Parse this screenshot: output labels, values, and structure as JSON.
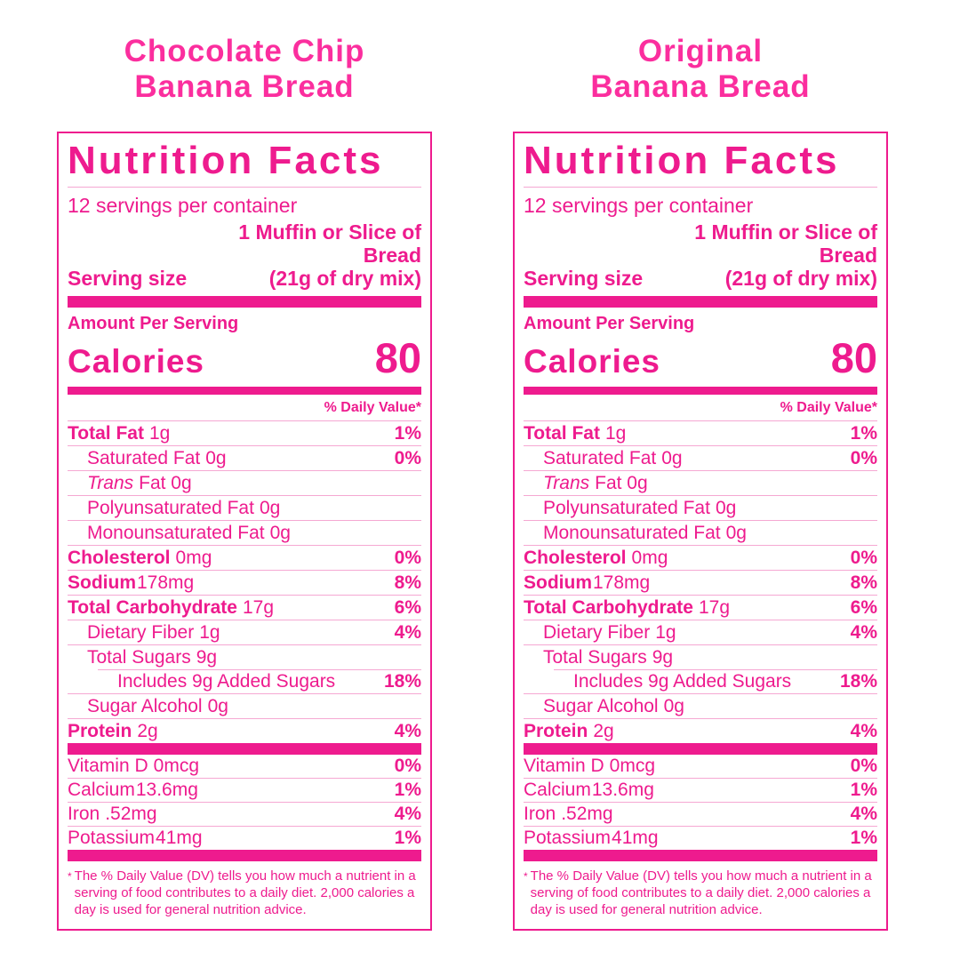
{
  "colors": {
    "title_pink": "#fb2e9e",
    "label_pink": "#ee1b8e",
    "hairline_pink": "#f5a8d2",
    "background": "#ffffff"
  },
  "labels": [
    {
      "title_line1": "Chocolate Chip",
      "title_line2": "Banana Bread"
    },
    {
      "title_line1": "Original",
      "title_line2": "Banana Bread"
    }
  ],
  "facts": {
    "heading": "Nutrition Facts",
    "servings_per_container": "12 servings per container",
    "serving_size_label": "Serving size",
    "serving_size_line1": "1 Muffin or Slice of",
    "serving_size_line2": "Bread",
    "serving_size_line3": "(21g of dry mix)",
    "amount_per_serving": "Amount Per Serving",
    "calories_label": "Calories",
    "calories_value": "80",
    "daily_value_header": "% Daily Value*",
    "rows": [
      {
        "name": "Total Fat",
        "amount": "1g",
        "dv": "1%"
      },
      {
        "name": "Saturated Fat",
        "amount": "0g",
        "dv": "0%"
      },
      {
        "name": "Trans",
        "amount": "Fat 0g",
        "dv": ""
      },
      {
        "name": "Polyunsaturated Fat",
        "amount": "0g",
        "dv": ""
      },
      {
        "name": "Monounsaturated Fat",
        "amount": "0g",
        "dv": ""
      },
      {
        "name": "Cholesterol",
        "amount": "0mg",
        "dv": "0%"
      },
      {
        "name": "Sodium",
        "amount": "178mg",
        "dv": "8%"
      },
      {
        "name": "Total Carbohydrate",
        "amount": "17g",
        "dv": "6%"
      },
      {
        "name": "Dietary Fiber",
        "amount": "1g",
        "dv": "4%"
      },
      {
        "name": "Total Sugars",
        "amount": "9g",
        "dv": ""
      },
      {
        "name": "Includes 9g Added Sugars",
        "amount": "",
        "dv": "18%"
      },
      {
        "name": "Sugar Alcohol",
        "amount": "0g",
        "dv": ""
      },
      {
        "name": "Protein",
        "amount": "2g",
        "dv": "4%"
      }
    ],
    "vitamins": [
      {
        "name": "Vitamin D",
        "amount": "0mcg",
        "dv": "0%"
      },
      {
        "name": "Calcium",
        "amount": "13.6mg",
        "dv": "1%"
      },
      {
        "name": "Iron",
        "amount": ".52mg",
        "dv": "4%"
      },
      {
        "name": "Potassium",
        "amount": "41mg",
        "dv": "1%"
      }
    ],
    "footnote_asterisk": "*",
    "footnote": "The % Daily Value (DV) tells you how much a nutrient in a serving of food contributes to a daily diet. 2,000 calories a day is used for general nutrition advice."
  }
}
